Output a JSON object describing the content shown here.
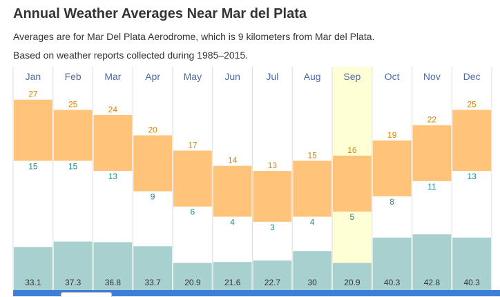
{
  "header": {
    "title": "Annual Weather Averages Near Mar del Plata",
    "subtitle": "Averages are for Mar Del Plata Aerodrome, which is 9 kilometers from Mar del Plata.",
    "note": "Based on weather reports collected during 1985–2015."
  },
  "chart_data": {
    "type": "bar",
    "categories": [
      "Jan",
      "Feb",
      "Mar",
      "Apr",
      "May",
      "Jun",
      "Jul",
      "Aug",
      "Sep",
      "Oct",
      "Nov",
      "Dec"
    ],
    "highlighted_category": "Sep",
    "series": [
      {
        "values": [
          27,
          25,
          24,
          20,
          17,
          14,
          13,
          15,
          16,
          19,
          22,
          25
        ]
      },
      {
        "values": [
          15,
          15,
          13,
          9,
          6,
          4,
          3,
          4,
          5,
          8,
          11,
          13
        ]
      },
      {
        "values": [
          33.1,
          37.3,
          36.8,
          33.7,
          20.9,
          21.6,
          22.7,
          30,
          20.9,
          40.3,
          42.8,
          40.3
        ]
      }
    ],
    "colors": {
      "temperature_bar": "#ffc47a",
      "high_text": "#d48806",
      "low_text": "#1f8a8a",
      "precip_bar": "#a8d0cf",
      "highlight": "#ffffd6",
      "month_text": "#4e6aa8",
      "grid": "#dddddd"
    }
  },
  "footer": {
    "bar_color": "#3b7fd8"
  }
}
